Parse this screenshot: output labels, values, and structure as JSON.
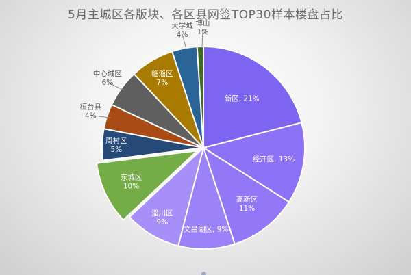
{
  "chart_data": {
    "type": "pie",
    "title": "5月主城区各版块、各区县网签TOP30样本楼盘占比",
    "slices": [
      {
        "name": "新区",
        "value": 21,
        "label_line1": "新区, 21%",
        "label_line2": "",
        "color": "#7d65f2"
      },
      {
        "name": "经开区",
        "value": 13,
        "label_line1": "经开区, 13%",
        "label_line2": "",
        "color": "#8c72f6"
      },
      {
        "name": "高新区",
        "value": 11,
        "label_line1": "高新区",
        "label_line2": "11%",
        "color": "#9278f7"
      },
      {
        "name": "文昌湖区",
        "value": 9,
        "label_line1": "文昌湖区, 9%",
        "label_line2": "",
        "color": "#9b82f8"
      },
      {
        "name": "淄川区",
        "value": 9,
        "label_line1": "淄川区",
        "label_line2": "9%",
        "color": "#a68ff9"
      },
      {
        "name": "东城区",
        "value": 10,
        "label_line1": "东城区",
        "label_line2": "10%",
        "color": "#74ad47"
      },
      {
        "name": "周村区",
        "value": 5,
        "label_line1": "周村区",
        "label_line2": "5%",
        "color": "#274978"
      },
      {
        "name": "桓台县",
        "value": 4,
        "label_line1": "桓台县",
        "label_line2": "4%",
        "color": "#a84b14"
      },
      {
        "name": "中心城区",
        "value": 6,
        "label_line1": "中心城区",
        "label_line2": "6%",
        "color": "#5f5f5f"
      },
      {
        "name": "临淄区",
        "value": 7,
        "label_line1": "临淄区",
        "label_line2": "7%",
        "color": "#a87a00"
      },
      {
        "name": "大学城",
        "value": 4,
        "label_line1": "大学城",
        "label_line2": "4%",
        "color": "#2b6598"
      },
      {
        "name": "博山",
        "value": 1,
        "label_line1": "博山",
        "label_line2": "1%",
        "color": "#3f6a2a"
      }
    ],
    "exploded": [
      "东城区"
    ],
    "legend": "none"
  }
}
